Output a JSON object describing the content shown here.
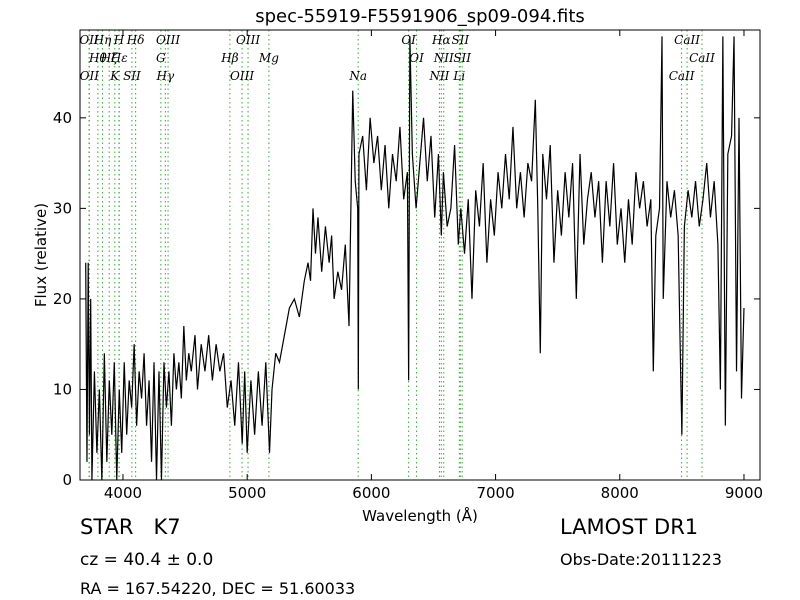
{
  "chart_data": {
    "type": "line",
    "title": "spec-55919-F5591906_sp09-094.fits",
    "x_label": "Wavelength (Å)",
    "y_label": "Flux (relative)",
    "xlim": [
      3654,
      9129
    ],
    "ylim": [
      0,
      49.7
    ],
    "xticks": [
      4000,
      5000,
      6000,
      7000,
      8000,
      9000
    ],
    "yticks": [
      0,
      10,
      20,
      30,
      40
    ],
    "color": "#000000",
    "line_color": "#33aa33",
    "lines": [
      {
        "label": "OII",
        "x": 3727
      },
      {
        "label": "Hθ",
        "x": 3798
      },
      {
        "label": "OII",
        "x": 3729
      },
      {
        "label": "Hη",
        "x": 3835
      },
      {
        "label": "Hζ",
        "x": 3889
      },
      {
        "label": "K",
        "x": 3934
      },
      {
        "label": "H",
        "x": 3968
      },
      {
        "label": "Hε",
        "x": 3970
      },
      {
        "label": "SII",
        "x": 4072
      },
      {
        "label": "Hδ",
        "x": 4102
      },
      {
        "label": "G",
        "x": 4305
      },
      {
        "label": "Hγ",
        "x": 4341
      },
      {
        "label": "OIII",
        "x": 4363
      },
      {
        "label": "Hβ",
        "x": 4861
      },
      {
        "label": "OIII",
        "x": 4959
      },
      {
        "label": "OIII",
        "x": 5007
      },
      {
        "label": "Mg",
        "x": 5175
      },
      {
        "label": "Na",
        "x": 5894
      },
      {
        "label": "OI",
        "x": 6300
      },
      {
        "label": "OI",
        "x": 6364
      },
      {
        "label": "NII",
        "x": 6548
      },
      {
        "label": "Hα",
        "x": 6563
      },
      {
        "label": "NII",
        "x": 6583
      },
      {
        "label": "Li",
        "x": 6708
      },
      {
        "label": "SII",
        "x": 6716
      },
      {
        "label": "SII",
        "x": 6731
      },
      {
        "label": "CaII",
        "x": 8498
      },
      {
        "label": "CaII",
        "x": 8542
      },
      {
        "label": "CaII",
        "x": 8662
      }
    ],
    "x": [
      3700,
      3710,
      3720,
      3730,
      3740,
      3750,
      3770,
      3790,
      3810,
      3830,
      3850,
      3870,
      3890,
      3910,
      3930,
      3950,
      3970,
      3990,
      4010,
      4030,
      4050,
      4070,
      4090,
      4110,
      4130,
      4150,
      4170,
      4190,
      4210,
      4230,
      4250,
      4270,
      4290,
      4310,
      4330,
      4350,
      4370,
      4390,
      4410,
      4430,
      4450,
      4470,
      4490,
      4510,
      4530,
      4550,
      4580,
      4600,
      4630,
      4660,
      4690,
      4720,
      4750,
      4780,
      4810,
      4840,
      4870,
      4900,
      4930,
      4960,
      4980,
      5000,
      5030,
      5060,
      5090,
      5120,
      5150,
      5180,
      5200,
      5230,
      5260,
      5300,
      5340,
      5380,
      5420,
      5460,
      5490,
      5510,
      5530,
      5550,
      5570,
      5600,
      5630,
      5660,
      5680,
      5700,
      5730,
      5760,
      5790,
      5820,
      5850,
      5870,
      5890,
      5895,
      5900,
      5930,
      5960,
      5990,
      6020,
      6050,
      6080,
      6110,
      6140,
      6170,
      6200,
      6230,
      6260,
      6290,
      6300,
      6310,
      6330,
      6360,
      6390,
      6420,
      6450,
      6480,
      6510,
      6540,
      6563,
      6580,
      6610,
      6640,
      6670,
      6700,
      6720,
      6750,
      6780,
      6810,
      6840,
      6870,
      6900,
      6930,
      6960,
      6990,
      7020,
      7050,
      7080,
      7110,
      7140,
      7170,
      7200,
      7230,
      7260,
      7290,
      7320,
      7340,
      7360,
      7380,
      7410,
      7440,
      7470,
      7500,
      7530,
      7560,
      7590,
      7620,
      7650,
      7680,
      7710,
      7740,
      7770,
      7800,
      7830,
      7860,
      7890,
      7920,
      7950,
      7980,
      8010,
      8040,
      8070,
      8100,
      8130,
      8160,
      8190,
      8220,
      8250,
      8270,
      8290,
      8320,
      8340,
      8350,
      8380,
      8410,
      8440,
      8470,
      8490,
      8500,
      8520,
      8550,
      8580,
      8610,
      8640,
      8670,
      8700,
      8730,
      8760,
      8790,
      8810,
      8830,
      8850,
      8870,
      8900,
      8920,
      8940,
      8960,
      8980,
      9000
    ],
    "values": [
      24,
      2,
      24,
      5,
      20,
      0,
      12,
      3,
      10,
      0,
      14,
      2,
      11,
      5,
      13,
      0,
      10,
      3,
      13,
      5,
      11,
      8,
      15,
      6,
      12,
      9,
      14,
      6,
      11,
      2,
      13,
      0,
      12,
      0,
      13,
      8,
      12,
      6,
      14,
      10,
      13,
      9,
      17,
      11,
      14,
      12,
      16,
      10,
      15,
      12,
      16,
      11,
      15,
      12,
      14,
      8,
      11,
      6,
      13,
      4,
      12,
      3,
      11,
      5,
      12,
      6,
      13,
      3,
      10,
      14,
      13,
      16,
      19,
      20,
      18,
      22,
      24,
      22,
      30,
      25,
      29,
      23,
      28,
      24,
      27,
      20,
      23,
      21,
      26,
      17,
      43,
      33,
      30,
      10,
      36,
      38,
      32,
      40,
      35,
      38,
      32,
      37,
      30,
      36,
      33,
      39,
      31,
      34,
      11,
      49,
      36,
      30,
      35,
      40,
      33,
      38,
      29,
      36,
      27,
      34,
      28,
      30,
      37,
      26,
      30,
      25,
      31,
      20,
      32,
      28,
      35,
      24,
      31,
      27,
      34,
      30,
      36,
      31,
      39,
      30,
      34,
      29,
      35,
      33,
      42,
      30,
      14,
      36,
      31,
      37,
      24,
      32,
      27,
      34,
      29,
      35,
      20,
      36,
      26,
      31,
      34,
      29,
      33,
      24,
      33,
      28,
      35,
      26,
      30,
      24,
      31,
      26,
      34,
      30,
      33,
      28,
      31,
      12,
      27,
      30,
      49,
      20,
      33,
      29,
      32,
      27,
      12,
      5,
      28,
      32,
      29,
      33,
      28,
      31,
      35,
      29,
      33,
      26,
      10,
      49,
      6,
      36,
      38,
      49,
      12,
      40,
      9,
      19
    ]
  },
  "info": {
    "object_class": "STAR   K7",
    "redshift": "cz = 40.4 ± 0.0",
    "coordinates": "RA = 167.54220, DEC = 51.60033",
    "survey": "LAMOST DR1",
    "obs_date": "Obs-Date:20111223"
  }
}
